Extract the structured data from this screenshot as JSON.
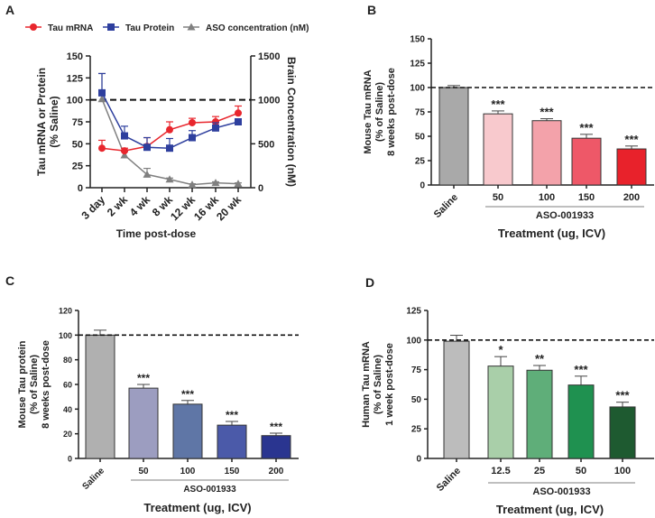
{
  "panels": {
    "a": "A",
    "b": "B",
    "c": "C",
    "d": "D"
  },
  "chart_data": [
    {
      "panel": "A",
      "type": "line",
      "categories": [
        "3 day",
        "2 wk",
        "4 wk",
        "8 wk",
        "12 wk",
        "16 wk",
        "20 wk"
      ],
      "xlabel": "Time post-dose",
      "ylabel": [
        "Tau mRNA or Protein",
        "(% Saline)"
      ],
      "ylim": [
        0,
        150
      ],
      "yticks": [
        0,
        25,
        50,
        75,
        100,
        125,
        150
      ],
      "y2label": "Brain Concentration (nM)",
      "y2lim": [
        0,
        1500
      ],
      "y2ticks": [
        0,
        500,
        1000,
        1500
      ],
      "reference_line": 100,
      "legend": "top",
      "series": [
        {
          "name": "Tau mRNA",
          "axis": "left",
          "marker": "circle",
          "color": "#e8262d",
          "values": [
            45,
            42,
            47,
            66,
            74,
            75,
            85
          ],
          "errors": [
            9,
            3,
            10,
            9,
            5,
            6,
            8
          ]
        },
        {
          "name": "Tau Protein",
          "axis": "left",
          "marker": "square",
          "color": "#2e3f9e",
          "values": [
            108,
            59,
            46,
            45,
            57,
            68,
            75
          ],
          "errors": [
            22,
            11,
            11,
            11,
            8,
            6,
            3
          ]
        },
        {
          "name": "ASO concentration (nM)",
          "axis": "right",
          "marker": "triangle",
          "color": "#808080",
          "values": [
            1010,
            370,
            150,
            95,
            35,
            55,
            45
          ],
          "errors": [
            290,
            40,
            70,
            15,
            10,
            12,
            10
          ]
        }
      ]
    },
    {
      "panel": "B",
      "type": "bar",
      "categories": [
        "Saline",
        "50",
        "100",
        "150",
        "200"
      ],
      "values": [
        100,
        73,
        66,
        48,
        37
      ],
      "errors": [
        2,
        3,
        2,
        4,
        3
      ],
      "significance": [
        "",
        "***",
        "***",
        "***",
        "***"
      ],
      "colors": [
        "#a9a9a9",
        "#f8c9cd",
        "#f3a2aa",
        "#ee5868",
        "#e8222b"
      ],
      "ylabel": [
        "Mouse Tau mRNA",
        "(% of Saline)",
        "8 weeks post-dose"
      ],
      "ylim": [
        0,
        150
      ],
      "yticks": [
        0,
        25,
        50,
        75,
        100,
        125,
        150
      ],
      "group_label": "ASO-001933",
      "xlabel": "Treatment (ug, ICV)",
      "reference_line": 100
    },
    {
      "panel": "C",
      "type": "bar",
      "categories": [
        "Saline",
        "50",
        "100",
        "150",
        "200"
      ],
      "values": [
        100,
        57,
        44,
        27,
        18.5
      ],
      "errors": [
        4,
        3,
        3,
        3,
        2
      ],
      "significance": [
        "",
        "***",
        "***",
        "***",
        "***"
      ],
      "colors": [
        "#b0b0b0",
        "#9c9dc0",
        "#5f76a6",
        "#4b5aa9",
        "#2a3590"
      ],
      "ylabel": [
        "Mouse Tau protein",
        "(% of Saline)",
        "8 weeks post-dose"
      ],
      "ylim": [
        0,
        120
      ],
      "yticks": [
        0,
        20,
        40,
        60,
        80,
        100,
        120
      ],
      "group_label": "ASO-001933",
      "xlabel": "Treatment (ug, ICV)",
      "reference_line": 100
    },
    {
      "panel": "D",
      "type": "bar",
      "categories": [
        "Saline",
        "12.5",
        "25",
        "50",
        "100"
      ],
      "values": [
        99,
        78,
        74.5,
        62,
        43.5
      ],
      "errors": [
        5,
        8,
        4,
        7.5,
        4
      ],
      "significance": [
        "",
        "*",
        "**",
        "***",
        "***"
      ],
      "colors": [
        "#bcbcbc",
        "#a9cfa9",
        "#5fae79",
        "#1f9150",
        "#1e5a30"
      ],
      "ylabel": [
        "Human Tau mRNA",
        "(% of Saline)",
        "1 week post-dose"
      ],
      "ylim": [
        0,
        125
      ],
      "yticks": [
        0,
        25,
        50,
        75,
        100,
        125
      ],
      "group_label": "ASO-001933",
      "xlabel": "Treatment (ug, ICV)",
      "reference_line": 100
    }
  ]
}
